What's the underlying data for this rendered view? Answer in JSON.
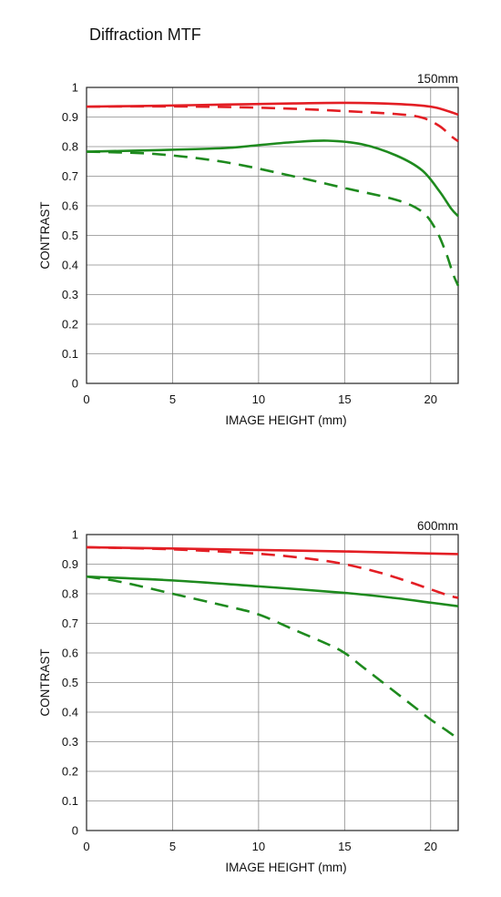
{
  "title": "Diffraction MTF",
  "chart_data": [
    {
      "type": "line",
      "label": "150mm",
      "xlabel": "IMAGE HEIGHT (mm)",
      "ylabel": "CONTRAST",
      "xlim": [
        0,
        21.6
      ],
      "ylim": [
        0,
        1
      ],
      "xticks": [
        0,
        5,
        10,
        15,
        20
      ],
      "yticks": [
        0,
        0.1,
        0.2,
        0.3,
        0.4,
        0.5,
        0.6,
        0.7,
        0.8,
        0.9,
        1
      ],
      "ytick_labels": [
        "0",
        "0.1",
        "0.2",
        "0.3",
        "0.4",
        "0.5",
        "0.6",
        "0.7",
        "0.8",
        "0.9",
        "1"
      ],
      "grid": true,
      "series": [
        {
          "color": "#e31e24",
          "dash": "solid",
          "x": [
            0,
            4,
            8,
            12,
            15,
            18,
            20,
            21,
            21.6
          ],
          "y": [
            0.935,
            0.938,
            0.942,
            0.946,
            0.948,
            0.944,
            0.935,
            0.92,
            0.908
          ]
        },
        {
          "color": "#e31e24",
          "dash": "dashed",
          "x": [
            0,
            4,
            8,
            12,
            15,
            18,
            19.5,
            20.5,
            21.2,
            21.6
          ],
          "y": [
            0.935,
            0.936,
            0.934,
            0.928,
            0.92,
            0.91,
            0.898,
            0.87,
            0.835,
            0.818
          ]
        },
        {
          "color": "#1e8a1e",
          "dash": "solid",
          "x": [
            0,
            4,
            8,
            10,
            12,
            14,
            16,
            18,
            19.5,
            20.5,
            21.2,
            21.6
          ],
          "y": [
            0.783,
            0.788,
            0.795,
            0.805,
            0.815,
            0.82,
            0.808,
            0.77,
            0.72,
            0.65,
            0.59,
            0.565
          ]
        },
        {
          "color": "#1e8a1e",
          "dash": "dashed",
          "x": [
            0,
            4,
            8,
            12,
            15,
            18,
            19.5,
            20.3,
            20.9,
            21.3,
            21.6
          ],
          "y": [
            0.783,
            0.775,
            0.748,
            0.7,
            0.66,
            0.62,
            0.58,
            0.52,
            0.44,
            0.37,
            0.33
          ]
        }
      ]
    },
    {
      "type": "line",
      "label": "600mm",
      "xlabel": "IMAGE HEIGHT (mm)",
      "ylabel": "CONTRAST",
      "xlim": [
        0,
        21.6
      ],
      "ylim": [
        0,
        1
      ],
      "xticks": [
        0,
        5,
        10,
        15,
        20
      ],
      "yticks": [
        0,
        0.1,
        0.2,
        0.3,
        0.4,
        0.5,
        0.6,
        0.7,
        0.8,
        0.9,
        1
      ],
      "ytick_labels": [
        "0",
        "0.1",
        "0.2",
        "0.3",
        "0.4",
        "0.5",
        "0.6",
        "0.7",
        "0.8",
        "0.9",
        "1"
      ],
      "grid": true,
      "series": [
        {
          "color": "#e31e24",
          "dash": "solid",
          "x": [
            0,
            5,
            10,
            15,
            20,
            21.6
          ],
          "y": [
            0.957,
            0.953,
            0.948,
            0.943,
            0.936,
            0.934
          ]
        },
        {
          "color": "#e31e24",
          "dash": "dashed",
          "x": [
            0,
            5,
            10,
            13,
            15,
            17,
            18.5,
            20,
            21,
            21.6
          ],
          "y": [
            0.957,
            0.95,
            0.935,
            0.918,
            0.9,
            0.872,
            0.845,
            0.815,
            0.795,
            0.786
          ]
        },
        {
          "color": "#1e8a1e",
          "dash": "solid",
          "x": [
            0,
            5,
            10,
            15,
            18,
            20,
            21.6
          ],
          "y": [
            0.858,
            0.845,
            0.825,
            0.803,
            0.785,
            0.77,
            0.758
          ]
        },
        {
          "color": "#1e8a1e",
          "dash": "dashed",
          "x": [
            0,
            2,
            5,
            8,
            10,
            12,
            14,
            15,
            16,
            17,
            18,
            19,
            20,
            21,
            21.6
          ],
          "y": [
            0.858,
            0.84,
            0.8,
            0.76,
            0.73,
            0.68,
            0.63,
            0.6,
            0.555,
            0.51,
            0.465,
            0.42,
            0.375,
            0.335,
            0.31
          ]
        }
      ]
    }
  ]
}
